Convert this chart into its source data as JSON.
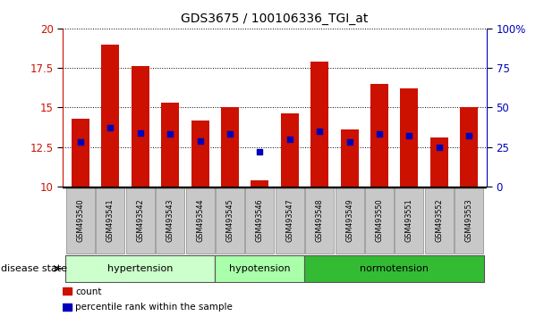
{
  "title": "GDS3675 / 100106336_TGI_at",
  "samples": [
    "GSM493540",
    "GSM493541",
    "GSM493542",
    "GSM493543",
    "GSM493544",
    "GSM493545",
    "GSM493546",
    "GSM493547",
    "GSM493548",
    "GSM493549",
    "GSM493550",
    "GSM493551",
    "GSM493552",
    "GSM493553"
  ],
  "bar_heights": [
    14.3,
    19.0,
    17.6,
    15.3,
    14.2,
    15.0,
    10.4,
    14.6,
    17.9,
    13.6,
    16.5,
    16.2,
    13.1,
    15.0
  ],
  "blue_dots": [
    12.8,
    13.7,
    13.4,
    13.3,
    12.9,
    13.3,
    12.2,
    13.0,
    13.5,
    12.8,
    13.3,
    13.2,
    12.5,
    13.2
  ],
  "y_min": 10,
  "y_max": 20,
  "y_ticks_left": [
    10,
    12.5,
    15,
    17.5,
    20
  ],
  "y_ticks_right": [
    0,
    25,
    50,
    75,
    100
  ],
  "bar_color": "#cc1100",
  "dot_color": "#0000bb",
  "groups": [
    {
      "label": "hypertension",
      "start": 0,
      "end": 5,
      "color": "#ccffcc"
    },
    {
      "label": "hypotension",
      "start": 5,
      "end": 8,
      "color": "#aaffaa"
    },
    {
      "label": "normotension",
      "start": 8,
      "end": 14,
      "color": "#33bb33"
    }
  ],
  "legend_items": [
    {
      "label": "count",
      "color": "#cc1100"
    },
    {
      "label": "percentile rank within the sample",
      "color": "#0000bb"
    }
  ],
  "disease_state_label": "disease state",
  "tick_bg_color": "#c8c8c8",
  "tick_edge_color": "#888888"
}
